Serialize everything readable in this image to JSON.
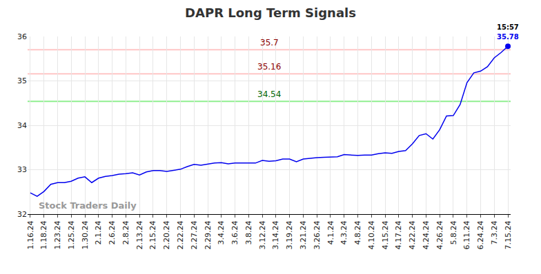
{
  "chart_data": {
    "type": "line",
    "title": "DAPR Long Term Signals",
    "categories": [
      "1.16.24",
      null,
      "1.18.24",
      null,
      "1.23.24",
      null,
      "1.25.24",
      null,
      "1.30.24",
      null,
      "2.1.24",
      null,
      "2.6.24",
      null,
      "2.8.24",
      null,
      "2.13.24",
      null,
      "2.15.24",
      null,
      "2.20.24",
      null,
      "2.22.24",
      null,
      "2.27.24",
      null,
      "2.29.24",
      null,
      "3.4.24",
      null,
      "3.6.24",
      null,
      "3.8.24",
      null,
      "3.12.24",
      null,
      "3.14.24",
      null,
      "3.19.24",
      null,
      "3.21.24",
      null,
      "3.26.24",
      null,
      "4.1.24",
      null,
      "4.3.24",
      null,
      "4.8.24",
      null,
      "4.10.24",
      null,
      "4.15.24",
      null,
      "4.17.24",
      null,
      "4.22.24",
      null,
      "4.24.24",
      null,
      "4.26.24",
      null,
      "5.8.24",
      null,
      "6.11.24",
      null,
      "6.24.24",
      null,
      "7.3.24",
      null,
      "7.15.24"
    ],
    "values": [
      32.48,
      32.4,
      32.51,
      32.67,
      32.71,
      32.71,
      32.74,
      32.81,
      32.84,
      32.71,
      32.81,
      32.85,
      32.87,
      32.9,
      32.91,
      32.93,
      32.88,
      32.95,
      32.98,
      32.98,
      32.96,
      32.98,
      33.01,
      33.07,
      33.12,
      33.1,
      33.13,
      33.15,
      33.16,
      33.13,
      33.15,
      33.15,
      33.15,
      33.15,
      33.21,
      33.19,
      33.2,
      33.24,
      33.24,
      33.18,
      33.24,
      33.26,
      33.27,
      33.28,
      33.29,
      33.29,
      33.34,
      33.33,
      33.32,
      33.33,
      33.33,
      33.36,
      33.38,
      33.37,
      33.41,
      33.43,
      33.58,
      33.77,
      33.81,
      33.69,
      33.9,
      34.21,
      34.22,
      34.47,
      34.96,
      35.18,
      35.22,
      35.32,
      35.52,
      35.64,
      35.78
    ],
    "color": "#0000ee",
    "ylim": [
      32,
      36
    ],
    "yticks": [
      32,
      33,
      34,
      35,
      36
    ],
    "grid": true,
    "levels": [
      {
        "value": 35.7,
        "color": "#ffc6c6",
        "label_color": "#8b0000"
      },
      {
        "value": 35.16,
        "color": "#ffc6c6",
        "label_color": "#8b0000"
      },
      {
        "value": 34.54,
        "color": "#90ee90",
        "label_color": "#006400"
      }
    ],
    "last_time": "15:57",
    "watermark": "Stock Traders Daily"
  }
}
